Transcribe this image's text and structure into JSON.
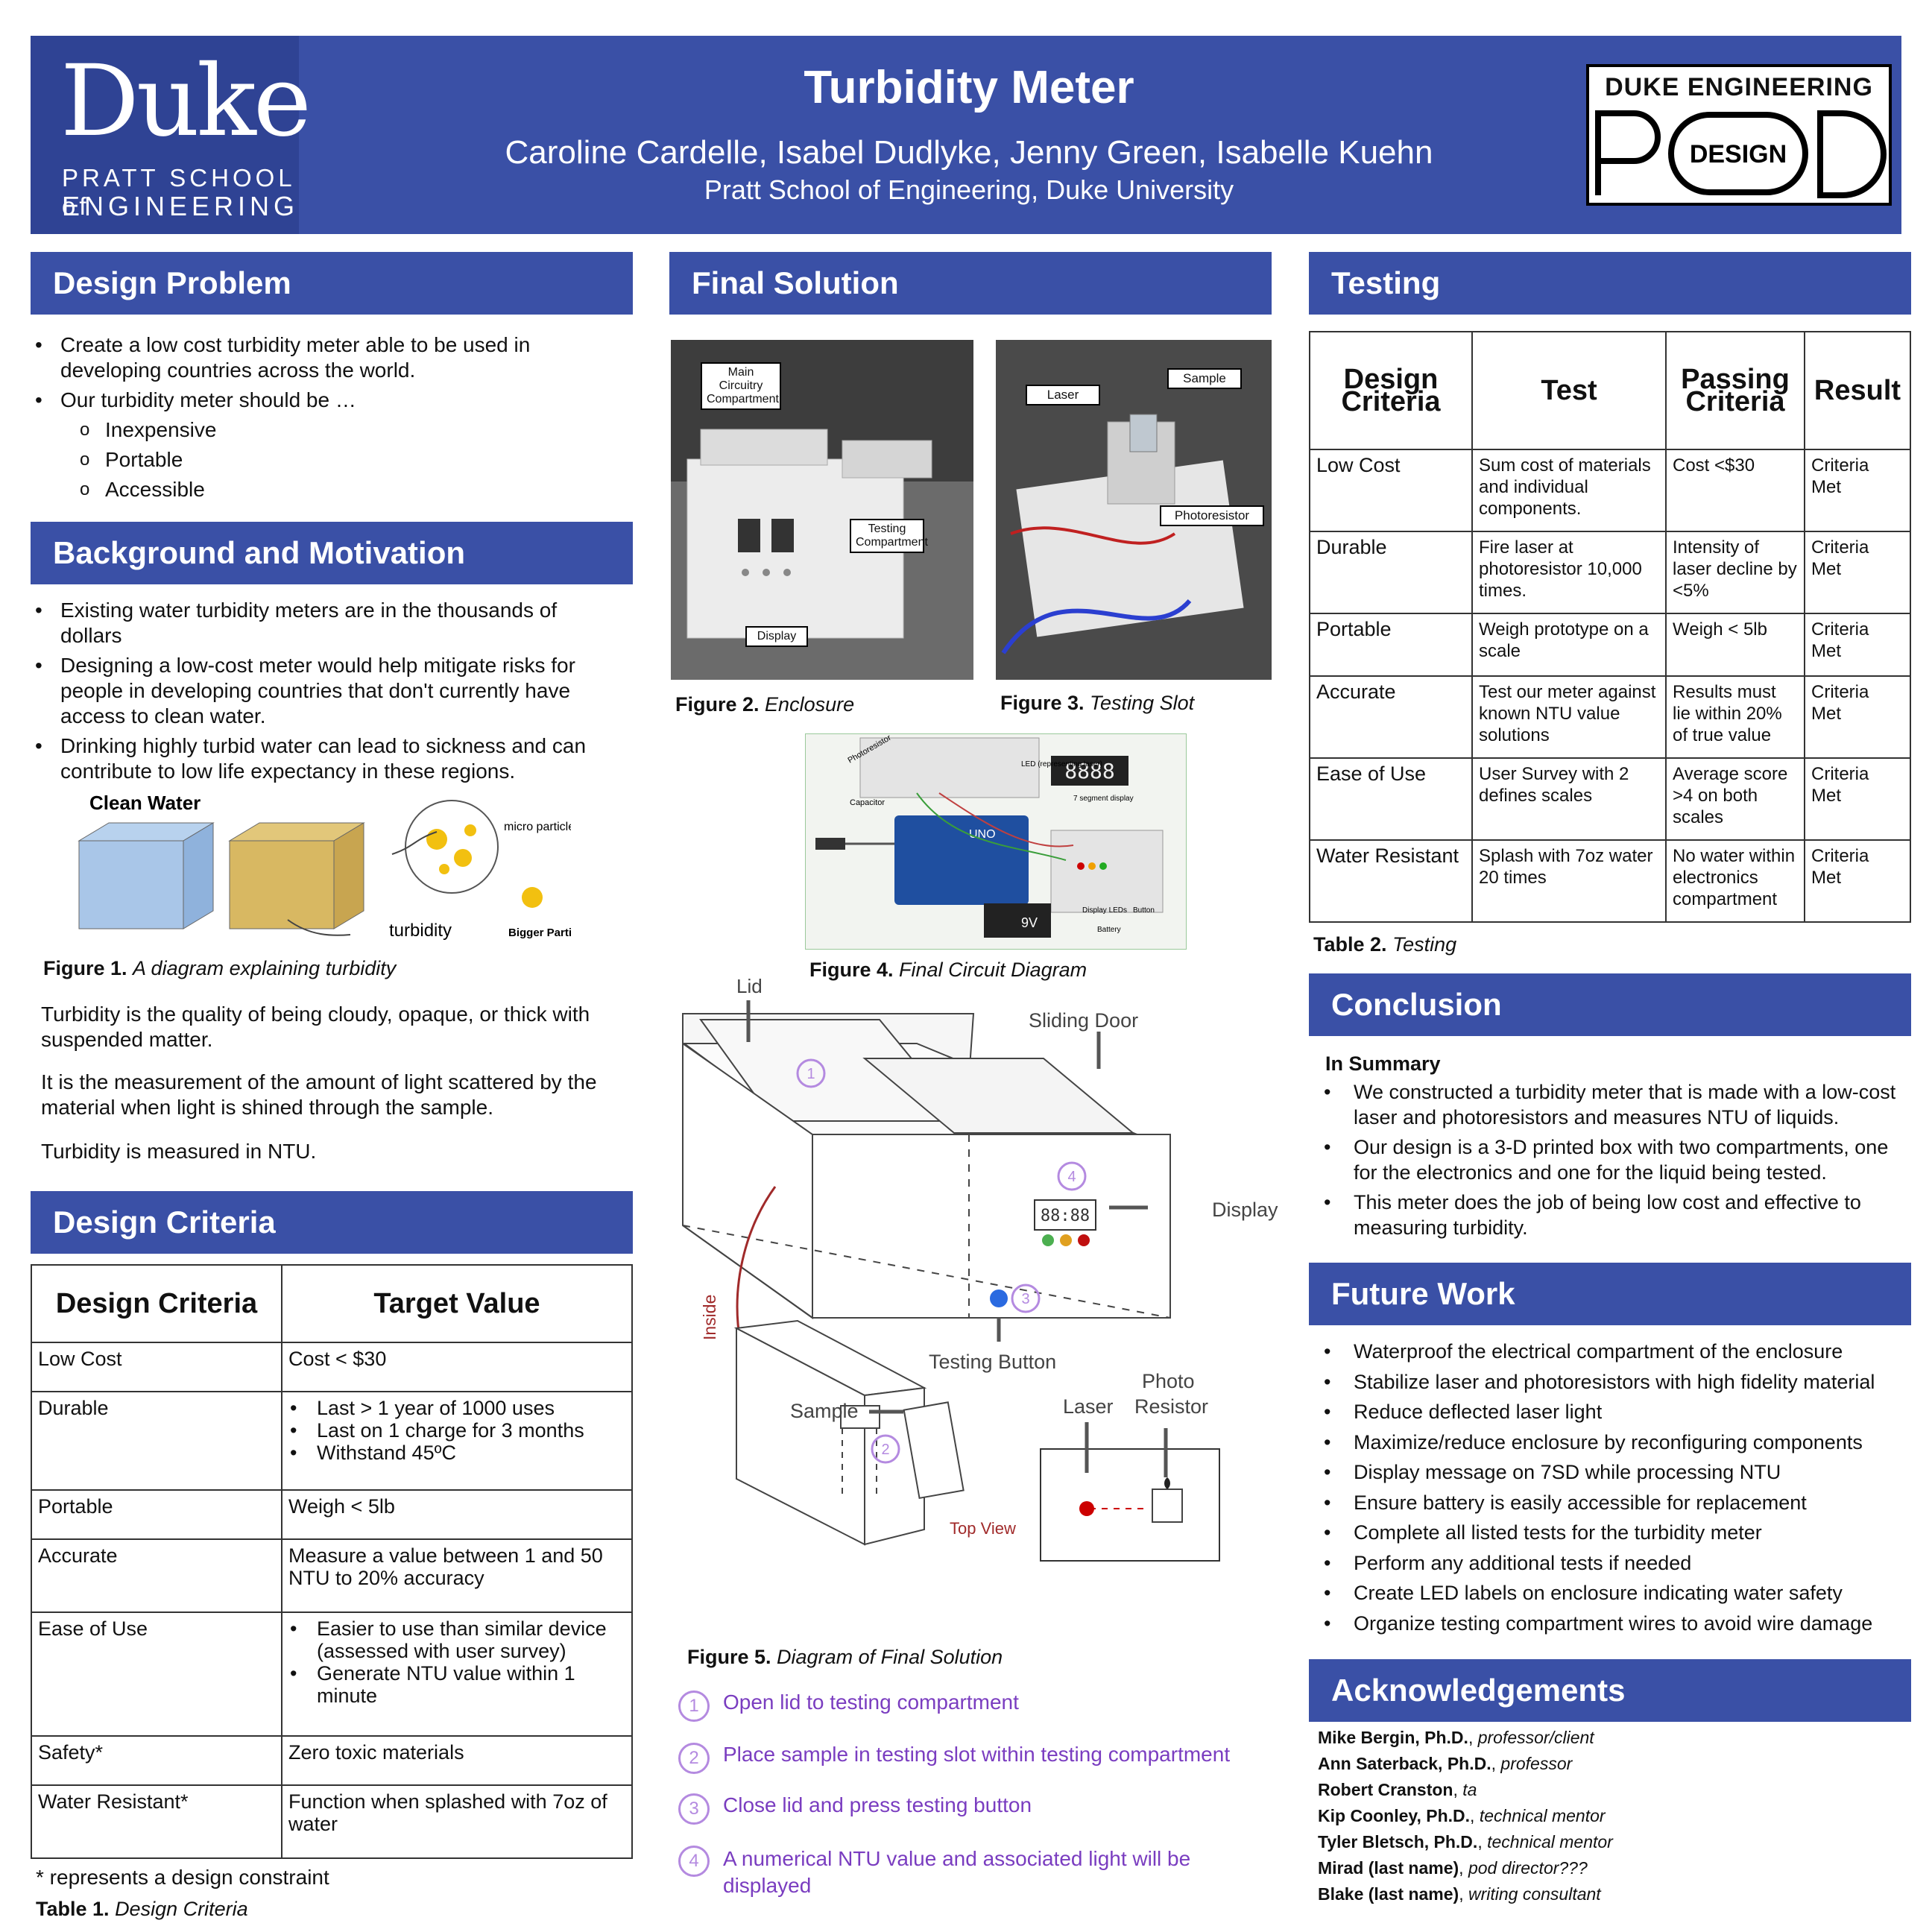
{
  "header": {
    "title": "Turbidity Meter",
    "authors": "Caroline Cardelle, Isabel Dudlyke, Jenny Green, Isabelle Kuehn",
    "affiliation": "Pratt School of Engineering, Duke University",
    "duke_logo": {
      "word": "Duke",
      "line1": "PRATT SCHOOL of",
      "line2": "ENGINEERING"
    },
    "pod_logo": {
      "top": "DUKE ENGINEERING",
      "mid": "DESIGN"
    }
  },
  "design_problem": {
    "heading": "Design Problem",
    "bullets": [
      "Create a low cost turbidity meter able to be used in developing countries across the world.",
      "Our turbidity meter should be …"
    ],
    "sub_bullets": [
      "Inexpensive",
      "Portable",
      "Accessible"
    ]
  },
  "background": {
    "heading": "Background and Motivation",
    "bullets": [
      "Existing water turbidity meters are in the thousands of dollars",
      "Designing a low-cost meter would help mitigate risks for people in developing countries that don't currently have access to clean water.",
      "Drinking highly turbid water can lead to sickness and can contribute to low life expectancy in these regions."
    ],
    "figure1": {
      "clean_water": "Clean Water",
      "micro": "micro particles = coloids",
      "turbidity": "turbidity",
      "bigger": "Bigger Particles",
      "cap_bold": "Figure 1.",
      "cap_text": "A diagram explaining turbidity"
    },
    "paragraphs": [
      "Turbidity is the quality of being cloudy, opaque, or thick with suspended matter.",
      "It is the measurement of the amount of light scattered by the material when light is shined through the sample.",
      "Turbidity is measured in NTU."
    ]
  },
  "design_criteria": {
    "heading": "Design Criteria",
    "col1": "Design Criteria",
    "col2": "Target Value",
    "rows": [
      {
        "c": "Low Cost",
        "v": [
          "Cost < $30"
        ],
        "list": false
      },
      {
        "c": "Durable",
        "v": [
          "Last > 1 year of 1000 uses",
          "Last on 1 charge for 3 months",
          "Withstand 45ºC"
        ],
        "list": true
      },
      {
        "c": "Portable",
        "v": [
          "Weigh < 5lb"
        ],
        "list": false
      },
      {
        "c": "Accurate",
        "v": [
          "Measure a value between 1 and 50 NTU to 20% accuracy"
        ],
        "list": false
      },
      {
        "c": "Ease of Use",
        "v": [
          "Easier to use than similar device (assessed with user survey)",
          "Generate NTU value within 1 minute"
        ],
        "list": true
      },
      {
        "c": "Safety*",
        "v": [
          "Zero toxic materials"
        ],
        "list": false
      },
      {
        "c": "Water Resistant*",
        "v": [
          "Function when splashed with 7oz of water"
        ],
        "list": false
      }
    ],
    "note": "* represents a design constraint",
    "cap_bold": "Table 1.",
    "cap_text": "Design Criteria"
  },
  "final_solution": {
    "heading": "Final Solution",
    "fig2": {
      "cap_bold": "Figure 2.",
      "cap_text": "Enclosure",
      "labels": [
        "Main Circuitry Compartment",
        "Testing Compartment",
        "Display"
      ]
    },
    "fig3": {
      "cap_bold": "Figure 3.",
      "cap_text": "Testing Slot",
      "labels": [
        "Laser",
        "Sample",
        "Photoresistor"
      ]
    },
    "fig4": {
      "cap_bold": "Figure 4.",
      "cap_text": "Final Circuit Diagram",
      "labels": [
        "Photoresistor",
        "Capacitor",
        "LED (representing laser)",
        "7 segment display",
        "Display LEDs",
        "Button",
        "Battery",
        "9V",
        "UNO",
        "8888"
      ]
    },
    "fig5": {
      "cap_bold": "Figure 5.",
      "cap_text": "Diagram of Final Solution",
      "lid": "Lid",
      "sliding_door": "Sliding Door",
      "display": "Display",
      "inside": "Inside",
      "testing_button": "Testing Button",
      "sample": "Sample",
      "laser": "Laser",
      "photo": "Photo",
      "resistor": "Resistor",
      "top_view": "Top View",
      "seg": "88:88"
    },
    "steps": [
      {
        "n": "1",
        "t": "Open lid to testing compartment"
      },
      {
        "n": "2",
        "t": "Place sample in testing slot within testing compartment"
      },
      {
        "n": "3",
        "t": "Close lid and press testing button"
      },
      {
        "n": "4",
        "t": "A numerical NTU value and associated light will be displayed"
      }
    ]
  },
  "testing": {
    "heading": "Testing",
    "cols": [
      "Design Criteria",
      "Test",
      "Passing Criteria",
      "Result"
    ],
    "rows": [
      [
        "Low Cost",
        "Sum cost of materials and individual components.",
        "Cost <$30",
        "Criteria Met"
      ],
      [
        "Durable",
        "Fire laser at photoresistor 10,000 times.",
        "Intensity of laser decline by <5%",
        "Criteria Met"
      ],
      [
        "Portable",
        "Weigh prototype on a scale",
        "Weigh < 5lb",
        "Criteria Met"
      ],
      [
        "Accurate",
        "Test our meter against known NTU value solutions",
        "Results must lie within 20% of true value",
        "Criteria Met"
      ],
      [
        "Ease of Use",
        "User Survey with 2 defines scales",
        "Average score >4 on both scales",
        "Criteria Met"
      ],
      [
        "Water Resistant",
        "Splash with 7oz water 20 times",
        "No water within electronics compartment",
        "Criteria Met"
      ]
    ],
    "cap_bold": "Table 2.",
    "cap_text": "Testing"
  },
  "conclusion": {
    "heading": "Conclusion",
    "sub": "In Summary",
    "bullets": [
      "We constructed a turbidity meter that is made with a low-cost laser and photoresistors and measures NTU of liquids.",
      "Our design is a 3-D printed box with two compartments, one for the electronics and one for the liquid being tested.",
      "This meter does the job of being low cost and effective to measuring turbidity."
    ]
  },
  "future_work": {
    "heading": "Future Work",
    "bullets": [
      "Waterproof the electrical compartment of the enclosure",
      "Stabilize laser and photoresistors with high fidelity material",
      "Reduce deflected laser light",
      "Maximize/reduce enclosure by reconfiguring components",
      "Display message on 7SD while processing NTU",
      "Ensure battery is easily accessible for replacement",
      "Complete all listed tests for the turbidity meter",
      "Perform any additional tests if needed",
      "Create LED labels on enclosure indicating water safety",
      "Organize testing compartment wires to avoid wire damage"
    ]
  },
  "acknowledgements": {
    "heading": "Acknowledgements",
    "people": [
      {
        "name": "Mike Bergin, Ph.D.",
        "role": "professor/client"
      },
      {
        "name": "Ann Saterback, Ph.D.",
        "role": "professor"
      },
      {
        "name": "Robert Cranston",
        "role": "ta"
      },
      {
        "name": "Kip Coonley, Ph.D.",
        "role": "technical mentor"
      },
      {
        "name": "Tyler Bletsch, Ph.D.",
        "role": "technical mentor"
      },
      {
        "name": "Mirad (last name)",
        "role": "pod director???"
      },
      {
        "name": "Blake (last name)",
        "role": "writing consultant"
      }
    ]
  }
}
